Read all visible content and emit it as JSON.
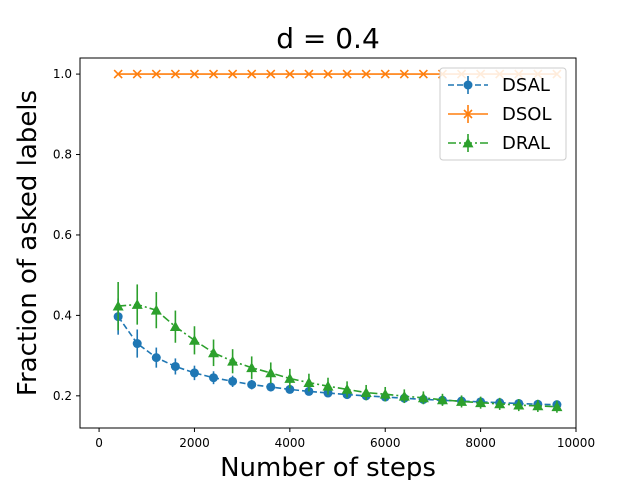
{
  "chart_data": {
    "type": "line",
    "title": "d = 0.4",
    "xlabel": "Number of steps",
    "ylabel": "Fraction of asked labels",
    "xlim": [
      -400,
      10000
    ],
    "ylim": [
      0.12,
      1.04
    ],
    "xticks": [
      0,
      2000,
      4000,
      6000,
      8000,
      10000
    ],
    "yticks": [
      0.2,
      0.4,
      0.6,
      0.8,
      1.0
    ],
    "xtick_labels": [
      "0",
      "2000",
      "4000",
      "6000",
      "8000",
      "10000"
    ],
    "ytick_labels": [
      "0.2",
      "0.4",
      "0.6",
      "0.8",
      "1.0"
    ],
    "legend_position": "top-right",
    "x": [
      400,
      800,
      1200,
      1600,
      2000,
      2400,
      2800,
      3200,
      3600,
      4000,
      4400,
      4800,
      5200,
      5600,
      6000,
      6400,
      6800,
      7200,
      7600,
      8000,
      8400,
      8800,
      9200,
      9600
    ],
    "series": [
      {
        "name": "DSAL",
        "color": "#1f77b4",
        "marker": "circle",
        "linestyle": "dashed",
        "values": [
          0.397,
          0.33,
          0.295,
          0.273,
          0.257,
          0.245,
          0.236,
          0.228,
          0.222,
          0.216,
          0.211,
          0.207,
          0.203,
          0.2,
          0.197,
          0.194,
          0.191,
          0.189,
          0.187,
          0.185,
          0.183,
          0.181,
          0.179,
          0.178
        ],
        "errors": [
          0.045,
          0.035,
          0.025,
          0.02,
          0.018,
          0.016,
          0.014,
          0.012,
          0.011,
          0.01,
          0.01,
          0.009,
          0.009,
          0.008,
          0.008,
          0.008,
          0.008,
          0.007,
          0.007,
          0.007,
          0.007,
          0.007,
          0.007,
          0.007
        ]
      },
      {
        "name": "DSOL",
        "color": "#ff7f0e",
        "marker": "x",
        "linestyle": "solid",
        "values": [
          1.0,
          1.0,
          1.0,
          1.0,
          1.0,
          1.0,
          1.0,
          1.0,
          1.0,
          1.0,
          1.0,
          1.0,
          1.0,
          1.0,
          1.0,
          1.0,
          1.0,
          1.0,
          1.0,
          1.0,
          1.0,
          1.0,
          1.0,
          1.0
        ],
        "errors": [
          0,
          0,
          0,
          0,
          0,
          0,
          0,
          0,
          0,
          0,
          0,
          0,
          0,
          0,
          0,
          0,
          0,
          0,
          0,
          0,
          0,
          0,
          0,
          0
        ]
      },
      {
        "name": "DRAL",
        "color": "#2ca02c",
        "marker": "triangle",
        "linestyle": "dashdot",
        "values": [
          0.423,
          0.427,
          0.413,
          0.372,
          0.338,
          0.307,
          0.286,
          0.27,
          0.257,
          0.243,
          0.233,
          0.224,
          0.216,
          0.208,
          0.204,
          0.199,
          0.195,
          0.19,
          0.186,
          0.183,
          0.18,
          0.177,
          0.175,
          0.173
        ],
        "errors": [
          0.06,
          0.05,
          0.045,
          0.04,
          0.035,
          0.033,
          0.03,
          0.028,
          0.026,
          0.024,
          0.022,
          0.021,
          0.02,
          0.019,
          0.018,
          0.017,
          0.016,
          0.015,
          0.015,
          0.015,
          0.015,
          0.015,
          0.015,
          0.015
        ]
      }
    ]
  }
}
